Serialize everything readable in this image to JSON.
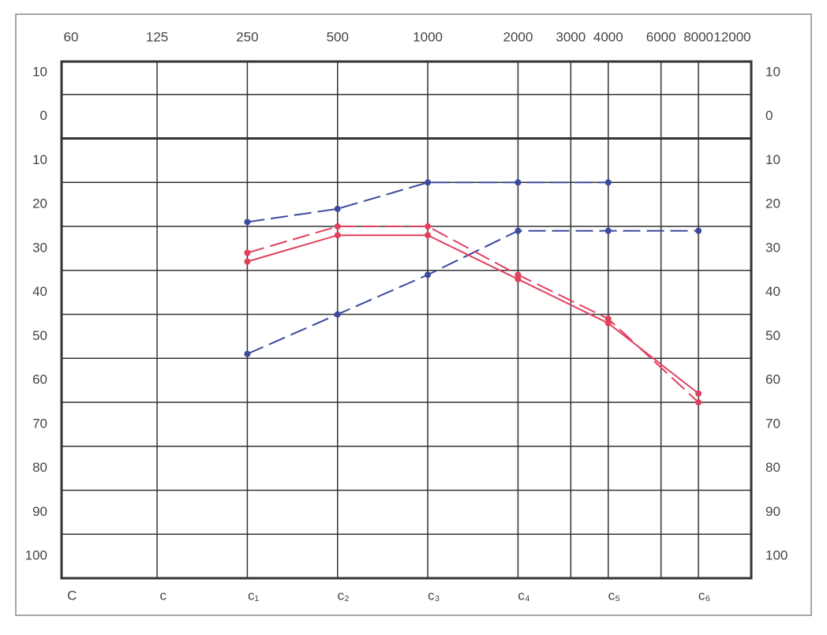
{
  "chart_data": {
    "type": "line",
    "xscale": "log",
    "xlim": [
      60,
      12000
    ],
    "xticks": [
      60,
      125,
      250,
      500,
      1000,
      2000,
      3000,
      4000,
      6000,
      8000,
      12000
    ],
    "x2ticks": [
      {
        "value": 65,
        "label": "C"
      },
      {
        "value": 131,
        "label": "c"
      },
      {
        "value": 262,
        "label": "c₁"
      },
      {
        "value": 523,
        "label": "c₂"
      },
      {
        "value": 1047,
        "label": "c₃"
      },
      {
        "value": 2093,
        "label": "c₄"
      },
      {
        "value": 4186,
        "label": "c₅"
      },
      {
        "value": 8372,
        "label": "c₆"
      }
    ],
    "ylim": [
      -12.5,
      105
    ],
    "yinverted": true,
    "yticks": [
      {
        "value": -10,
        "label": "10"
      },
      0,
      10,
      20,
      30,
      40,
      50,
      60,
      70,
      80,
      90,
      100
    ],
    "ygrid": [
      -5,
      5,
      15,
      25,
      35,
      45,
      55,
      65,
      75,
      85,
      95
    ],
    "bold_ygrid": 5,
    "series": [
      {
        "color": "#3b4a9c",
        "dashed": true,
        "x": [
          250,
          500,
          1000,
          2000,
          4000
        ],
        "values": [
          24,
          21,
          15,
          15,
          15
        ]
      },
      {
        "color": "#3b4a9c",
        "dashed": true,
        "x": [
          250,
          500,
          1000,
          2000,
          4000,
          8000
        ],
        "values": [
          54,
          45,
          36,
          26,
          26,
          26
        ]
      },
      {
        "color": "#e0405e",
        "dashed": true,
        "x": [
          250,
          500,
          1000,
          2000,
          4000,
          8000
        ],
        "values": [
          31,
          25,
          25,
          36,
          46,
          65
        ]
      },
      {
        "color": "#e0405e",
        "dashed": false,
        "x": [
          250,
          500,
          1000,
          2000,
          4000,
          8000
        ],
        "values": [
          33,
          27,
          27,
          37,
          47,
          63
        ]
      }
    ]
  }
}
